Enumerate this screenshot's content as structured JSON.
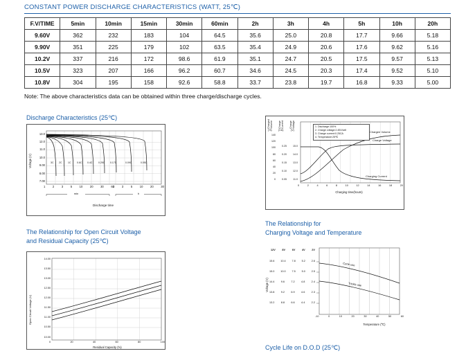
{
  "colors": {
    "accent": "#1c5fa8",
    "chart_line": "#111111",
    "grid": "#bbbbbb"
  },
  "title": "CONSTANT POWER DISCHARGE CHARACTERISTICS (WATT, 25℃)",
  "table": {
    "headers": [
      "F.V/TIME",
      "5min",
      "10min",
      "15min",
      "30min",
      "60min",
      "2h",
      "3h",
      "4h",
      "5h",
      "10h",
      "20h"
    ],
    "rows": [
      [
        "9.60V",
        "362",
        "232",
        "183",
        "104",
        "64.5",
        "35.6",
        "25.0",
        "20.8",
        "17.7",
        "9.66",
        "5.18"
      ],
      [
        "9.90V",
        "351",
        "225",
        "179",
        "102",
        "63.5",
        "35.4",
        "24.9",
        "20.6",
        "17.6",
        "9.62",
        "5.16"
      ],
      [
        "10.2V",
        "337",
        "216",
        "172",
        "98.6",
        "61.9",
        "35.1",
        "24.7",
        "20.5",
        "17.5",
        "9.57",
        "5.13"
      ],
      [
        "10.5V",
        "323",
        "207",
        "166",
        "96.2",
        "60.7",
        "34.6",
        "24.5",
        "20.3",
        "17.4",
        "9.52",
        "5.10"
      ],
      [
        "10.8V",
        "304",
        "195",
        "158",
        "92.6",
        "58.8",
        "33.7",
        "23.8",
        "19.7",
        "16.8",
        "9.33",
        "5.00"
      ]
    ]
  },
  "note": "Note: The above characteristics data can be obtained within three charge/discharge cycles.",
  "discharge_chart": {
    "title": "Discharge Characteristics (25℃)",
    "ylabel": "Voltage (V)",
    "xlabel": "Discharge time",
    "yticks": [
      "13.0",
      "12.0",
      "11.0",
      "10.0",
      "9.00",
      "8.00",
      "7.00"
    ],
    "xticks_min": [
      "1",
      "2",
      "3",
      "5",
      "10",
      "20",
      "30",
      "60"
    ],
    "xticks_h": [
      "2",
      "3",
      "5",
      "10",
      "20",
      "30"
    ],
    "unit_min": "min",
    "unit_h": "h",
    "curve_labels": [
      "3C",
      "2C",
      "1C",
      "0.6C",
      "0.4C",
      "0.25C",
      "0.17C",
      "0.09C",
      "0.05C"
    ]
  },
  "charge_chart": {
    "axis_titles": [
      "Charged\nVolume",
      "Charge\nCurrent",
      "Charge\nVoltage"
    ],
    "unit_headers": [
      "(%)",
      "(CA)",
      "(V)"
    ],
    "volume_ticks": [
      "140",
      "120",
      "100",
      "80",
      "60",
      "40",
      "20",
      "0"
    ],
    "current_ticks": [
      "0.25",
      "0.20",
      "0.15",
      "0.10",
      "0.05"
    ],
    "voltage_ticks": [
      "15.0",
      "14.0",
      "13.0",
      "12.0",
      "11.0"
    ],
    "legend": "1. Discharge:100%\n2. Charge voltage:2.45V/cell\n3. Charge current:0.25CA\n4. Temperature:25℃",
    "labels": {
      "volume": "Charged Volume",
      "voltage": "Charge Voltage",
      "current": "Charging Current"
    },
    "xticks": [
      "0",
      "2",
      "4",
      "6",
      "8",
      "10",
      "12",
      "14",
      "16",
      "18",
      "20"
    ],
    "xlabel": "Charging time(hours)"
  },
  "ocv_chart": {
    "title_line1": "The Relationship for Open Circuit Voltage",
    "title_line2": "and Residual Capacity (25℃)",
    "ylabel": "Open Circuit Voltage (V)",
    "xlabel": "Residual Capacity (%)",
    "yticks": [
      "14.00",
      "13.50",
      "13.00",
      "12.50",
      "12.00",
      "11.50",
      "11.00",
      "10.50",
      "10.00"
    ],
    "xticks": [
      "0",
      "20",
      "40",
      "60",
      "80",
      "100"
    ]
  },
  "temp_chart": {
    "title_line1": "The Relationship for",
    "title_line2": "Charging Voltage and Temperature",
    "ylabel": "Voltage (V)",
    "xlabel": "Temperature (℃)",
    "col_headers": [
      "12V",
      "8V",
      "6V",
      "4V",
      "2V"
    ],
    "scale_rows": [
      [
        "15.6",
        "10.4",
        "7.8",
        "5.2",
        "2.6"
      ],
      [
        "15.0",
        "10.0",
        "7.5",
        "5.0",
        "2.5"
      ],
      [
        "14.4",
        "9.6",
        "7.2",
        "4.8",
        "2.4"
      ],
      [
        "13.8",
        "9.2",
        "6.9",
        "4.6",
        "2.3"
      ],
      [
        "13.2",
        "8.8",
        "6.6",
        "4.4",
        "2.2"
      ]
    ],
    "xticks": [
      "-10",
      "0",
      "10",
      "20",
      "30",
      "40",
      "50",
      "60"
    ],
    "curve_labels": [
      "Cycle use",
      "Trickle use"
    ]
  },
  "cycle_life_title": "Cycle Life on D.O.D (25℃)"
}
